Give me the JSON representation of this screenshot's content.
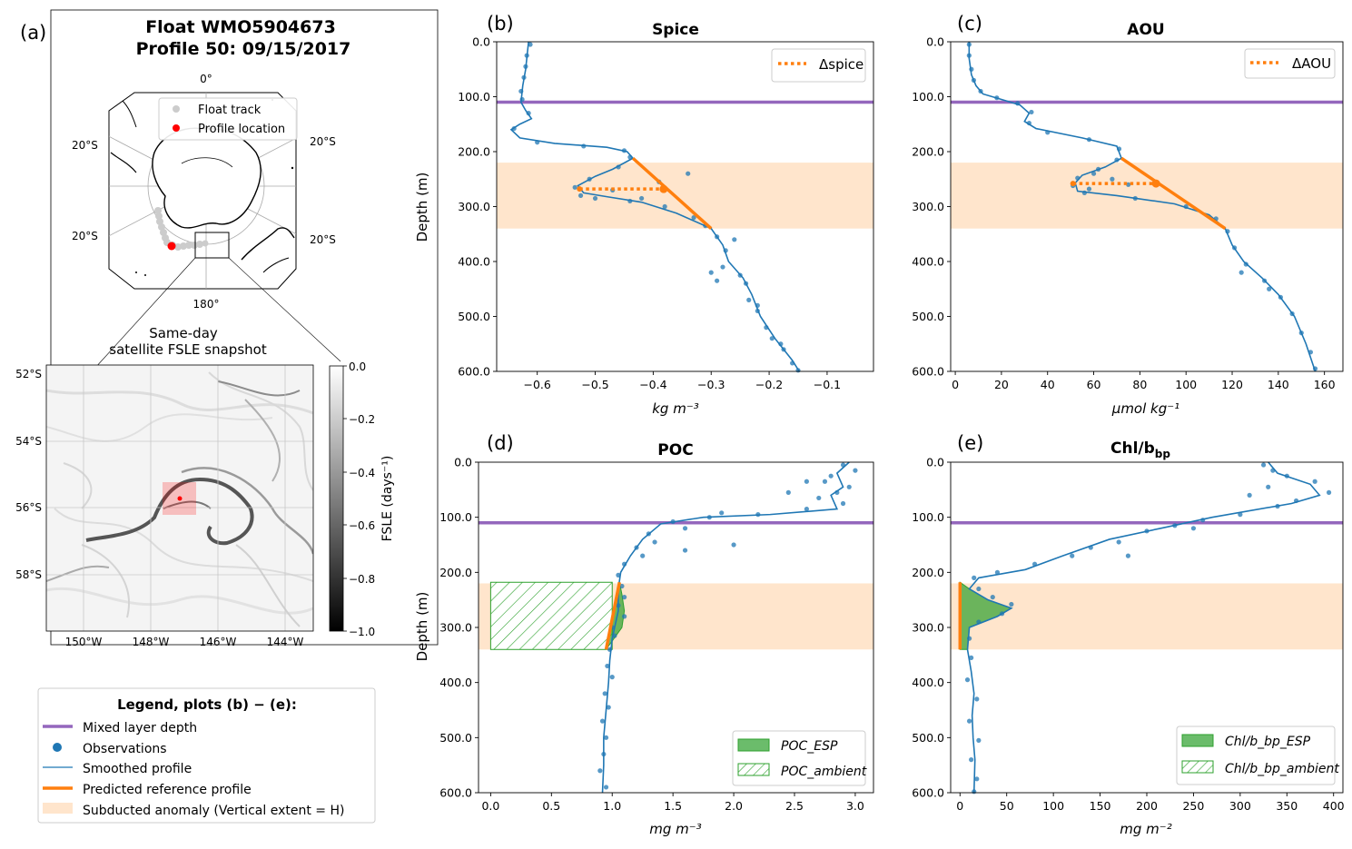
{
  "figure": {
    "panel_a": {
      "letter": "(a)",
      "title_line1": "Float WMO5904673",
      "title_line2": "Profile 50: 09/15/2017",
      "map": {
        "lon_label_top": "0°",
        "lon_label_bottom": "180°",
        "lat_labels": [
          "20°S",
          "20°S",
          "20°S",
          "20°S"
        ],
        "legend": [
          "Float track",
          "Profile location"
        ],
        "track_color": "#cccccc",
        "profile_color": "#ff0000"
      },
      "inset": {
        "caption_line1": "Same-day",
        "caption_line2": "satellite FSLE snapshot",
        "lat_ticks": [
          "52°S",
          "54°S",
          "56°S",
          "58°S"
        ],
        "lon_ticks": [
          "150°W",
          "148°W",
          "146°W",
          "144°W"
        ],
        "colorbar": {
          "label": "FSLE (days⁻¹)",
          "ticks": [
            "0.0",
            "−0.2",
            "−0.4",
            "−0.6",
            "−0.8",
            "−1.0"
          ],
          "range": [
            -1.0,
            0.0
          ]
        }
      }
    },
    "legend_be": {
      "title": "Legend, plots (b) − (e):",
      "items": [
        {
          "label": "Mixed layer depth",
          "kind": "line",
          "color": "#9467bd"
        },
        {
          "label": "Observations",
          "kind": "dot",
          "color": "#1f77b4"
        },
        {
          "label": "Smoothed profile",
          "kind": "thin",
          "color": "#1f77b4"
        },
        {
          "label": "Predicted reference profile",
          "kind": "line",
          "color": "#ff7f0e"
        },
        {
          "label": "Subducted anomaly (Vertical extent = H)",
          "kind": "patch",
          "color": "#ffe5cc"
        }
      ]
    }
  },
  "chart_data": [
    {
      "id": "b",
      "type": "line",
      "letter": "(b)",
      "title": "Spice",
      "xlabel": "kg m⁻³",
      "ylabel": "Depth (m)",
      "xlim": [
        -0.67,
        -0.02
      ],
      "ylim": [
        600,
        0
      ],
      "xticks": [
        -0.6,
        -0.5,
        -0.4,
        -0.3,
        -0.2,
        -0.1
      ],
      "xtick_labels": [
        "−0.6",
        "−0.5",
        "−0.4",
        "−0.3",
        "−0.2",
        "−0.1"
      ],
      "yticks": [
        0,
        100,
        200,
        300,
        400,
        500,
        600
      ],
      "ytick_labels": [
        "0.0",
        "100.0",
        "200.0",
        "300.0",
        "400.0",
        "500.0",
        "600.0"
      ],
      "mld": 110,
      "anomaly_band": [
        220,
        340
      ],
      "legend": [
        "Δspice"
      ],
      "smoothed": [
        [
          -0.615,
          0
        ],
        [
          -0.617,
          20
        ],
        [
          -0.62,
          50
        ],
        [
          -0.625,
          80
        ],
        [
          -0.628,
          110
        ],
        [
          -0.62,
          125
        ],
        [
          -0.61,
          140
        ],
        [
          -0.63,
          150
        ],
        [
          -0.645,
          160
        ],
        [
          -0.63,
          175
        ],
        [
          -0.57,
          185
        ],
        [
          -0.48,
          192
        ],
        [
          -0.445,
          200
        ],
        [
          -0.435,
          212
        ],
        [
          -0.47,
          232
        ],
        [
          -0.5,
          245
        ],
        [
          -0.53,
          262
        ],
        [
          -0.52,
          275
        ],
        [
          -0.48,
          282
        ],
        [
          -0.42,
          292
        ],
        [
          -0.36,
          312
        ],
        [
          -0.3,
          340
        ],
        [
          -0.28,
          370
        ],
        [
          -0.27,
          400
        ],
        [
          -0.245,
          430
        ],
        [
          -0.23,
          460
        ],
        [
          -0.215,
          500
        ],
        [
          -0.19,
          540
        ],
        [
          -0.16,
          580
        ],
        [
          -0.148,
          600
        ]
      ],
      "scatter": [
        [
          -0.612,
          5
        ],
        [
          -0.618,
          25
        ],
        [
          -0.62,
          45
        ],
        [
          -0.623,
          65
        ],
        [
          -0.628,
          90
        ],
        [
          -0.626,
          105
        ],
        [
          -0.615,
          130
        ],
        [
          -0.64,
          158
        ],
        [
          -0.6,
          183
        ],
        [
          -0.52,
          190
        ],
        [
          -0.45,
          198
        ],
        [
          -0.44,
          210
        ],
        [
          -0.46,
          228
        ],
        [
          -0.51,
          250
        ],
        [
          -0.535,
          265
        ],
        [
          -0.525,
          280
        ],
        [
          -0.5,
          285
        ],
        [
          -0.44,
          290
        ],
        [
          -0.38,
          300
        ],
        [
          -0.33,
          320
        ],
        [
          -0.31,
          335
        ],
        [
          -0.29,
          355
        ],
        [
          -0.275,
          380
        ],
        [
          -0.28,
          410
        ],
        [
          -0.25,
          425
        ],
        [
          -0.24,
          440
        ],
        [
          -0.235,
          470
        ],
        [
          -0.22,
          490
        ],
        [
          -0.205,
          520
        ],
        [
          -0.195,
          540
        ],
        [
          -0.175,
          560
        ],
        [
          -0.16,
          585
        ],
        [
          -0.15,
          598
        ],
        [
          -0.34,
          240
        ],
        [
          -0.39,
          255
        ],
        [
          -0.47,
          270
        ],
        [
          -0.42,
          285
        ],
        [
          -0.26,
          360
        ],
        [
          -0.3,
          420
        ],
        [
          -0.29,
          435
        ],
        [
          -0.22,
          480
        ],
        [
          -0.18,
          550
        ]
      ],
      "reference": [
        [
          -0.435,
          212
        ],
        [
          -0.3,
          340
        ]
      ],
      "delta": [
        [
          -0.527,
          268
        ],
        [
          -0.382,
          268
        ]
      ]
    },
    {
      "id": "c",
      "type": "line",
      "letter": "(c)",
      "title": "AOU",
      "xlabel": "μmol kg⁻¹",
      "ylabel": "",
      "xlim": [
        -2,
        168
      ],
      "ylim": [
        600,
        0
      ],
      "xticks": [
        0,
        20,
        40,
        60,
        80,
        100,
        120,
        140,
        160
      ],
      "xtick_labels": [
        "0",
        "20",
        "40",
        "60",
        "80",
        "100",
        "120",
        "140",
        "160"
      ],
      "yticks": [
        0,
        100,
        200,
        300,
        400,
        500,
        600
      ],
      "ytick_labels": [
        "0.0",
        "100.0",
        "200.0",
        "300.0",
        "400.0",
        "500.0",
        "600.0"
      ],
      "mld": 110,
      "anomaly_band": [
        220,
        340
      ],
      "legend": [
        "ΔAOU"
      ],
      "smoothed": [
        [
          6,
          0
        ],
        [
          6,
          30
        ],
        [
          7,
          60
        ],
        [
          9,
          80
        ],
        [
          12,
          95
        ],
        [
          20,
          105
        ],
        [
          28,
          115
        ],
        [
          32,
          130
        ],
        [
          30,
          145
        ],
        [
          35,
          158
        ],
        [
          55,
          175
        ],
        [
          70,
          190
        ],
        [
          72,
          212
        ],
        [
          65,
          228
        ],
        [
          55,
          243
        ],
        [
          52,
          257
        ],
        [
          53,
          272
        ],
        [
          70,
          280
        ],
        [
          95,
          295
        ],
        [
          110,
          315
        ],
        [
          117,
          340
        ],
        [
          120,
          370
        ],
        [
          125,
          400
        ],
        [
          133,
          430
        ],
        [
          140,
          460
        ],
        [
          147,
          500
        ],
        [
          152,
          550
        ],
        [
          156,
          600
        ]
      ],
      "scatter": [
        [
          6,
          5
        ],
        [
          6,
          25
        ],
        [
          7,
          50
        ],
        [
          8,
          70
        ],
        [
          11,
          90
        ],
        [
          18,
          102
        ],
        [
          27,
          112
        ],
        [
          33,
          128
        ],
        [
          32,
          148
        ],
        [
          40,
          165
        ],
        [
          58,
          178
        ],
        [
          71,
          195
        ],
        [
          70,
          215
        ],
        [
          62,
          232
        ],
        [
          53,
          248
        ],
        [
          51,
          262
        ],
        [
          56,
          275
        ],
        [
          78,
          285
        ],
        [
          100,
          300
        ],
        [
          113,
          322
        ],
        [
          118,
          345
        ],
        [
          121,
          375
        ],
        [
          126,
          405
        ],
        [
          134,
          435
        ],
        [
          141,
          465
        ],
        [
          146,
          495
        ],
        [
          150,
          530
        ],
        [
          154,
          565
        ],
        [
          156,
          595
        ],
        [
          60,
          240
        ],
        [
          68,
          250
        ],
        [
          75,
          260
        ],
        [
          58,
          268
        ],
        [
          124,
          420
        ],
        [
          136,
          450
        ]
      ],
      "reference": [
        [
          72,
          212
        ],
        [
          117,
          340
        ]
      ],
      "delta": [
        [
          51,
          258
        ],
        [
          87,
          258
        ]
      ]
    },
    {
      "id": "d",
      "type": "line",
      "letter": "(d)",
      "title": "POC",
      "xlabel": "mg m⁻³",
      "ylabel": "Depth (m)",
      "xlim": [
        -0.1,
        3.15
      ],
      "ylim": [
        600,
        0
      ],
      "xticks": [
        0,
        0.5,
        1,
        1.5,
        2,
        2.5,
        3
      ],
      "xtick_labels": [
        "0.0",
        "0.5",
        "1.0",
        "1.5",
        "2.0",
        "2.5",
        "3.0"
      ],
      "yticks": [
        0,
        100,
        200,
        300,
        400,
        500,
        600
      ],
      "ytick_labels": [
        "0.0",
        "100.0",
        "200.0",
        "300.0",
        "400.0",
        "500.0",
        "600.0"
      ],
      "mld": 110,
      "anomaly_band": [
        220,
        340
      ],
      "legend": [
        "POC_ESP",
        "POC_ambient"
      ],
      "smoothed": [
        [
          2.95,
          0
        ],
        [
          2.85,
          20
        ],
        [
          2.9,
          45
        ],
        [
          2.8,
          60
        ],
        [
          2.85,
          85
        ],
        [
          2.3,
          95
        ],
        [
          1.75,
          100
        ],
        [
          1.4,
          112
        ],
        [
          1.25,
          140
        ],
        [
          1.15,
          170
        ],
        [
          1.07,
          200
        ],
        [
          1.05,
          230
        ],
        [
          1.05,
          270
        ],
        [
          1.0,
          320
        ],
        [
          0.98,
          360
        ],
        [
          0.97,
          400
        ],
        [
          0.95,
          450
        ],
        [
          0.93,
          500
        ],
        [
          0.93,
          550
        ],
        [
          0.92,
          600
        ]
      ],
      "scatter": [
        [
          2.9,
          5
        ],
        [
          3.0,
          15
        ],
        [
          2.8,
          25
        ],
        [
          2.75,
          35
        ],
        [
          2.95,
          45
        ],
        [
          2.85,
          55
        ],
        [
          2.7,
          65
        ],
        [
          2.9,
          75
        ],
        [
          2.6,
          85
        ],
        [
          2.2,
          95
        ],
        [
          1.8,
          100
        ],
        [
          1.5,
          108
        ],
        [
          1.6,
          120
        ],
        [
          1.3,
          130
        ],
        [
          1.35,
          145
        ],
        [
          1.2,
          155
        ],
        [
          1.25,
          170
        ],
        [
          1.1,
          185
        ],
        [
          1.05,
          205
        ],
        [
          1.08,
          225
        ],
        [
          1.1,
          245
        ],
        [
          1.05,
          260
        ],
        [
          1.1,
          280
        ],
        [
          1.0,
          300
        ],
        [
          1.02,
          315
        ],
        [
          0.98,
          340
        ],
        [
          0.96,
          370
        ],
        [
          1.0,
          390
        ],
        [
          0.94,
          420
        ],
        [
          0.97,
          445
        ],
        [
          0.92,
          470
        ],
        [
          0.95,
          500
        ],
        [
          0.93,
          530
        ],
        [
          0.9,
          560
        ],
        [
          0.95,
          590
        ],
        [
          2.0,
          150
        ],
        [
          1.6,
          160
        ],
        [
          2.6,
          35
        ],
        [
          2.45,
          55
        ],
        [
          1.9,
          92
        ]
      ],
      "reference": [
        [
          1.06,
          218
        ],
        [
          0.95,
          340
        ]
      ],
      "esp_region": {
        "inner": 1.0,
        "outer": 1.08,
        "top": 218,
        "bottom": 340
      },
      "ambient_region": {
        "x0": 0.0,
        "x1": 1.0,
        "top": 218,
        "bottom": 340
      }
    },
    {
      "id": "e",
      "type": "line",
      "letter": "(e)",
      "title": "Chl/b",
      "title_sub": "bp",
      "xlabel": "mg m⁻²",
      "ylabel": "",
      "xlim": [
        -10,
        410
      ],
      "ylim": [
        600,
        0
      ],
      "xticks": [
        0,
        50,
        100,
        150,
        200,
        250,
        300,
        350,
        400
      ],
      "xtick_labels": [
        "0",
        "50",
        "100",
        "150",
        "200",
        "250",
        "300",
        "350",
        "400"
      ],
      "yticks": [
        0,
        100,
        200,
        300,
        400,
        500,
        600
      ],
      "ytick_labels": [
        "0.0",
        "100.0",
        "200.0",
        "300.0",
        "400.0",
        "500.0",
        "600.0"
      ],
      "mld": 110,
      "anomaly_band": [
        220,
        340
      ],
      "legend": [
        "Chl/b_bp_ESP",
        "Chl/b_bp_ambient"
      ],
      "smoothed": [
        [
          330,
          0
        ],
        [
          340,
          20
        ],
        [
          375,
          40
        ],
        [
          385,
          60
        ],
        [
          355,
          75
        ],
        [
          270,
          100
        ],
        [
          215,
          120
        ],
        [
          160,
          140
        ],
        [
          110,
          170
        ],
        [
          70,
          195
        ],
        [
          20,
          210
        ],
        [
          10,
          230
        ],
        [
          30,
          250
        ],
        [
          55,
          265
        ],
        [
          40,
          280
        ],
        [
          10,
          300
        ],
        [
          8,
          340
        ],
        [
          12,
          380
        ],
        [
          15,
          420
        ],
        [
          13,
          460
        ],
        [
          14,
          500
        ],
        [
          16,
          540
        ],
        [
          15,
          600
        ]
      ],
      "scatter": [
        [
          325,
          5
        ],
        [
          335,
          15
        ],
        [
          350,
          25
        ],
        [
          380,
          35
        ],
        [
          395,
          55
        ],
        [
          360,
          70
        ],
        [
          340,
          80
        ],
        [
          300,
          95
        ],
        [
          260,
          105
        ],
        [
          230,
          115
        ],
        [
          200,
          125
        ],
        [
          170,
          145
        ],
        [
          140,
          155
        ],
        [
          120,
          170
        ],
        [
          80,
          185
        ],
        [
          40,
          200
        ],
        [
          15,
          210
        ],
        [
          20,
          230
        ],
        [
          35,
          245
        ],
        [
          55,
          258
        ],
        [
          45,
          275
        ],
        [
          20,
          290
        ],
        [
          10,
          320
        ],
        [
          12,
          355
        ],
        [
          8,
          395
        ],
        [
          18,
          430
        ],
        [
          10,
          470
        ],
        [
          20,
          505
        ],
        [
          12,
          540
        ],
        [
          18,
          575
        ],
        [
          15,
          598
        ],
        [
          330,
          45
        ],
        [
          310,
          60
        ],
        [
          250,
          120
        ],
        [
          180,
          170
        ]
      ],
      "reference": [
        [
          0,
          218
        ],
        [
          0,
          340
        ]
      ],
      "esp_region": {
        "x0": 0,
        "top": 218,
        "bottom": 340
      }
    }
  ]
}
